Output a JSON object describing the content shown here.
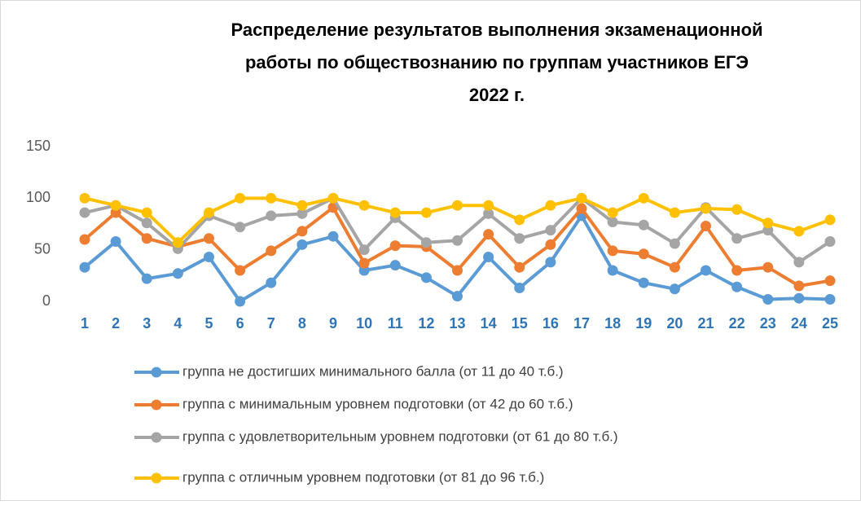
{
  "chart_data": {
    "type": "line",
    "title": "Распределение результатов выполнения экзаменационной работы по обществознанию по группам участников ЕГЭ 2022 г.",
    "title_lines": [
      "Распределение результатов выполнения экзаменационной",
      "работы по обществознанию по группам участников ЕГЭ",
      "2022 г."
    ],
    "categories": [
      "1",
      "2",
      "3",
      "4",
      "5",
      "6",
      "7",
      "8",
      "9",
      "10",
      "11",
      "12",
      "13",
      "14",
      "15",
      "16",
      "17",
      "18",
      "19",
      "20",
      "21",
      "22",
      "23",
      "24",
      "25"
    ],
    "ylim": [
      0,
      150
    ],
    "yticks": [
      0,
      50,
      100,
      150
    ],
    "grid": false,
    "legend": "bottom",
    "series": [
      {
        "name": "группа не достигших минимального балла (от 11 до 40 т.б.)",
        "color": "#5b9bd5",
        "values": [
          33,
          58,
          22,
          27,
          43,
          0,
          18,
          55,
          63,
          30,
          35,
          23,
          5,
          43,
          13,
          38,
          83,
          30,
          18,
          12,
          30,
          14,
          2,
          3,
          2
        ]
      },
      {
        "name": "группа с минимальным уровнем подготовки (от 42 до 60 т.б.)",
        "color": "#ed7d31",
        "values": [
          60,
          86,
          61,
          53,
          61,
          30,
          49,
          68,
          91,
          37,
          54,
          53,
          30,
          65,
          33,
          55,
          90,
          49,
          46,
          33,
          73,
          30,
          33,
          15,
          20
        ]
      },
      {
        "name": "группа с удовлетворительным уровнем подготовки (от 61 до 80 т.б.)",
        "color": "#a5a5a5",
        "values": [
          86,
          93,
          76,
          51,
          83,
          72,
          83,
          85,
          100,
          50,
          81,
          57,
          59,
          85,
          61,
          69,
          100,
          77,
          74,
          56,
          91,
          61,
          69,
          38,
          58
        ]
      },
      {
        "name": "группа с отличным уровнем подготовки (от 81 до 96 т.б.)",
        "color": "#ffc000",
        "values": [
          100,
          93,
          86,
          57,
          86,
          100,
          100,
          93,
          100,
          93,
          86,
          86,
          93,
          93,
          79,
          93,
          100,
          86,
          100,
          86,
          90,
          89,
          76,
          68,
          79
        ]
      }
    ]
  }
}
